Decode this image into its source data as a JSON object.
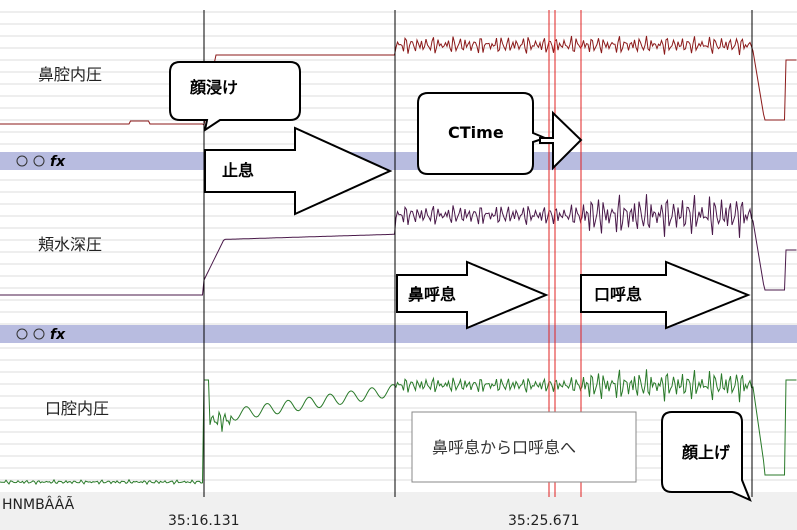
{
  "channels": [
    {
      "label": "鼻腔内圧"
    },
    {
      "label": "頬水深圧"
    },
    {
      "label": "口腔内圧"
    }
  ],
  "toolbar_formula": "fx",
  "callouts": {
    "face_in": "顔浸け",
    "ctime": "CTime",
    "face_up": "顔上げ"
  },
  "arrows": {
    "breath_hold": "止息",
    "nasal_exhale": "鼻呼息",
    "oral_exhale": "口呼息"
  },
  "note": "鼻呼息から口呼息へ",
  "status_text": "HNMBÂÂÃ",
  "time_labels": [
    "35:16.131",
    "35:25.671"
  ]
}
